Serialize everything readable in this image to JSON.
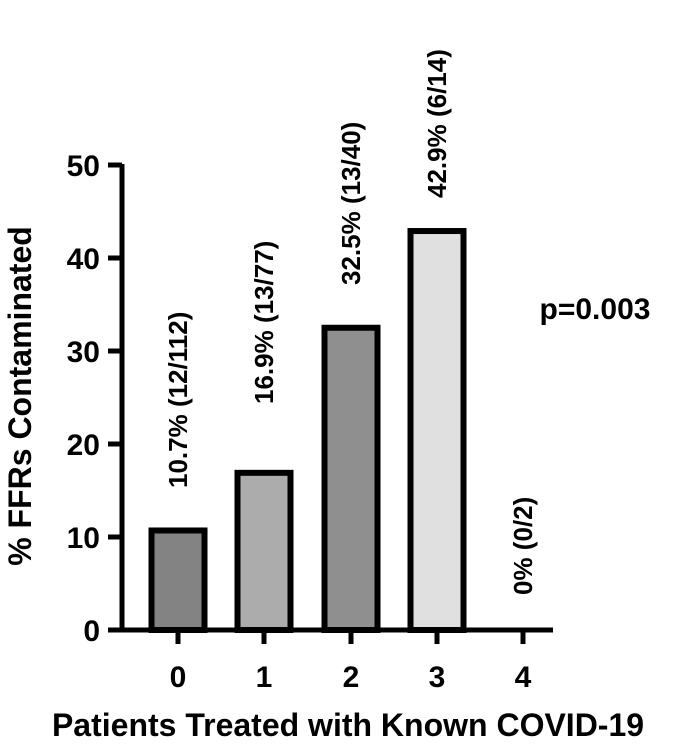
{
  "chart_data": {
    "type": "bar",
    "title": "",
    "xlabel": "Patients Treated with Known COVID-19",
    "ylabel": "% FFRs Contaminated",
    "ylim": [
      0,
      50
    ],
    "yticks": [
      0,
      10,
      20,
      30,
      40,
      50
    ],
    "categories": [
      "0",
      "1",
      "2",
      "3",
      "4"
    ],
    "values": [
      10.7,
      16.9,
      32.5,
      42.9,
      0
    ],
    "bar_labels": [
      "10.7% (12/112)",
      "16.9% (13/77)",
      "32.5% (13/40)",
      "42.9% (6/14)",
      "0% (0/2)"
    ],
    "bar_colors": [
      "#838383",
      "#acacac",
      "#8f8f8f",
      "#e0e0e0",
      "#ffffff"
    ],
    "annotation": "p=0.003",
    "grid": false,
    "legend": "none"
  }
}
